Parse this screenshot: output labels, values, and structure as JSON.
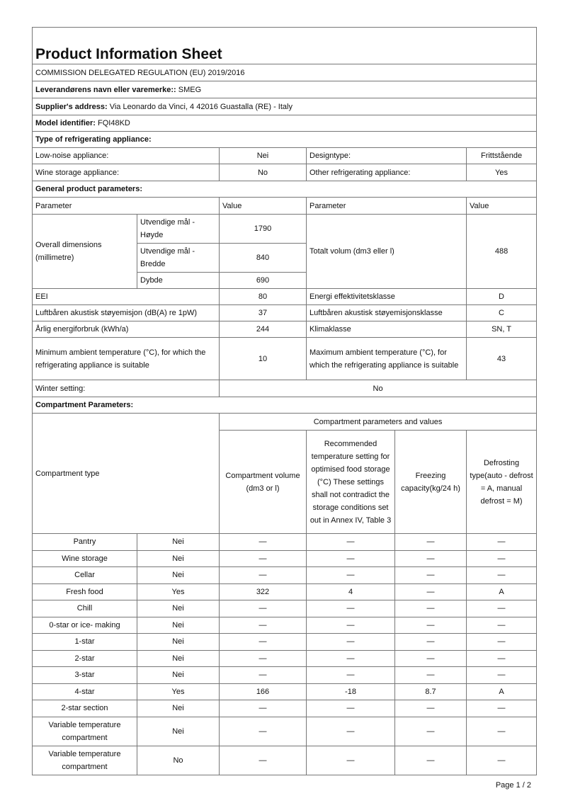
{
  "title": "Product Information Sheet",
  "regulation": "COMMISSION DELEGATED REGULATION (EU) 2019/2016",
  "supplier_name_label": "Leverandørens navn eller varemerke::",
  "supplier_name": " SMEG",
  "supplier_address_label": "Supplier's address:",
  "supplier_address": " Via Leonardo da Vinci, 4 42016 Guastalla (RE) - Italy",
  "model_label": "Model identifier:",
  "model": " FQI48KD",
  "type_heading": "Type of refrigerating appliance:",
  "type_rows": [
    {
      "l1": "Low-noise appliance:",
      "v1": "Nei",
      "l2": "Designtype:",
      "v2": "Frittstående"
    },
    {
      "l1": "Wine storage appliance:",
      "v1": "No",
      "l2": "Other refrigerating appliance:",
      "v2": "Yes"
    }
  ],
  "general_heading": "General product parameters:",
  "param_header": {
    "p1": "Parameter",
    "v1": "Value",
    "p2": "Parameter",
    "v2": "Value"
  },
  "dimensions": {
    "label": "Overall dimensions (millimetre)",
    "h_label": "Utvendige mål - Høyde",
    "h": "1790",
    "w_label": "Utvendige mål - Bredde",
    "w": "840",
    "d_label": "Dybde",
    "d": "690",
    "vol_label": "Totalt volum (dm3 eller l)",
    "vol": "488"
  },
  "params": [
    {
      "l1": "EEI",
      "v1": "80",
      "l2": "Energi effektivitetsklasse",
      "v2": "D"
    },
    {
      "l1": "Luftbåren akustisk støyemisjon (dB(A) re 1pW)",
      "v1": "37",
      "l2": "Luftbåren akustisk støyemisjonsklasse",
      "v2": "C"
    },
    {
      "l1": "Årlig energiforbruk (kWh/a)",
      "v1": "244",
      "l2": "Klimaklasse",
      "v2": "SN, T"
    },
    {
      "l1": "Minimum ambient temperature (°C), for which the refrigerating appliance is suitable",
      "v1": "10",
      "l2": "Maximum ambient temperature (°C), for which the refrigerating appliance is suitable",
      "v2": "43"
    }
  ],
  "winter_label": "Winter setting:",
  "winter": "No",
  "compartment_heading": "Compartment Parameters:",
  "comp_header": {
    "type": "Compartment type",
    "group": "Compartment parameters and values",
    "volume": "Compartment volume (dm3 or l)",
    "temp": "Recommended temperature setting for optimised food storage (°C) These settings shall not contradict the storage conditions set out in Annex IV, Table 3",
    "freezing": "Freezing capacity(kg/24 h)",
    "defrost": "Defrosting type(auto - defrost = A, manual defrost = M)"
  },
  "compartments": [
    [
      "Pantry",
      "Nei",
      "—",
      "—",
      "—",
      "—"
    ],
    [
      "Wine storage",
      "Nei",
      "—",
      "—",
      "—",
      "—"
    ],
    [
      "Cellar",
      "Nei",
      "—",
      "—",
      "—",
      "—"
    ],
    [
      "Fresh food",
      "Yes",
      "322",
      "4",
      "—",
      "A"
    ],
    [
      "Chill",
      "Nei",
      "—",
      "—",
      "—",
      "—"
    ],
    [
      "0-star or ice- making",
      "Nei",
      "—",
      "—",
      "—",
      "—"
    ],
    [
      "1-star",
      "Nei",
      "—",
      "—",
      "—",
      "—"
    ],
    [
      "2-star",
      "Nei",
      "—",
      "—",
      "—",
      "—"
    ],
    [
      "3-star",
      "Nei",
      "—",
      "—",
      "—",
      "—"
    ],
    [
      "4-star",
      "Yes",
      "166",
      "-18",
      "8.7",
      "A"
    ],
    [
      "2-star section",
      "Nei",
      "—",
      "—",
      "—",
      "—"
    ],
    [
      "Variable temperature compartment",
      "Nei",
      "—",
      "—",
      "—",
      "—"
    ],
    [
      "Variable temperature compartment",
      "No",
      "—",
      "—",
      "—",
      "—"
    ]
  ],
  "page": "Page 1 / 2"
}
